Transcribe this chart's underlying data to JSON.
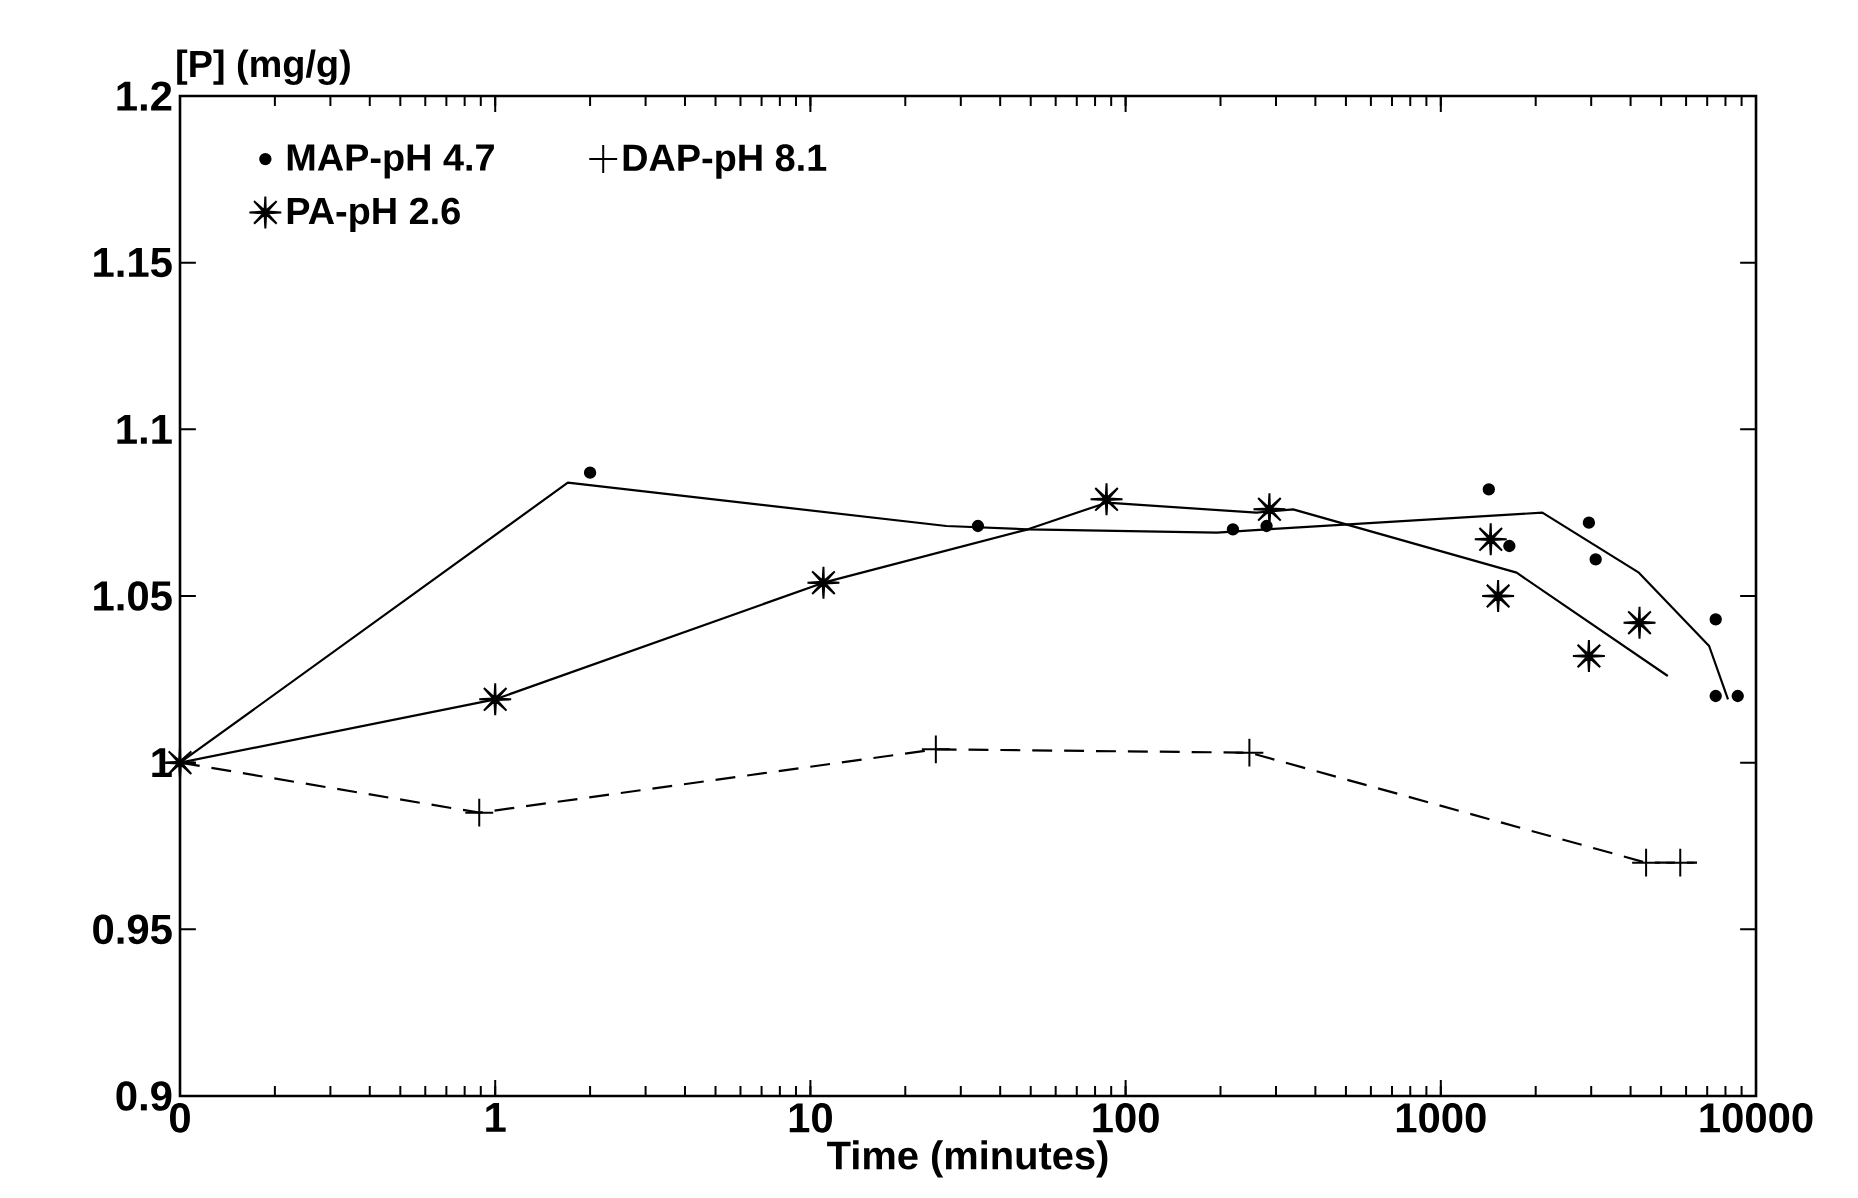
{
  "chart_data": {
    "type": "scatter",
    "xlabel": "Time (minutes)",
    "ylabel": "[P] (mg/g)",
    "log": "x",
    "xlim": [
      0.1,
      10000
    ],
    "ylim": [
      0.9,
      1.2
    ],
    "xticks": [
      {
        "value": 0.1,
        "label": "0"
      },
      1,
      10,
      100,
      1000,
      10000
    ],
    "yticks": [
      0.9,
      0.95,
      1,
      1.05,
      1.1,
      1.15,
      1.2
    ],
    "grid": false,
    "legend": "top left",
    "series": [
      {
        "name": "MAP-pH 4.7",
        "color": "#000000",
        "marker": "circle",
        "x": [
          2,
          34,
          219,
          280,
          1420,
          1650,
          2950,
          3100,
          7450,
          7450,
          8750
        ],
        "values": [
          1.087,
          1.071,
          1.07,
          1.071,
          1.082,
          1.065,
          1.072,
          1.061,
          1.043,
          1.02,
          1.02
        ]
      },
      {
        "name": "DAP-pH 8.1",
        "color": "#000000",
        "marker": "cross",
        "x": [
          0.1,
          0.89,
          25,
          247,
          4480,
          5750
        ],
        "values": [
          1.0,
          0.985,
          1.004,
          1.003,
          0.97,
          0.97
        ]
      },
      {
        "name": "PA-pH 2.6",
        "color": "#000000",
        "marker": "star",
        "x": [
          0.1,
          1,
          11,
          87,
          286,
          1440,
          1520,
          2950,
          4270
        ],
        "values": [
          1.0,
          1.019,
          1.054,
          1.079,
          1.076,
          1.067,
          1.05,
          1.032,
          1.042
        ]
      },
      {
        "type": "line",
        "color": "#000000",
        "marker": "none",
        "line_style": "solid",
        "x": [
          0.1,
          1.7,
          27,
          49,
          195,
          280,
          2100,
          4250,
          7100,
          8150
        ],
        "values": [
          1.0,
          1.084,
          1.071,
          1.07,
          1.069,
          1.07,
          1.075,
          1.057,
          1.035,
          1.019
        ]
      },
      {
        "type": "line",
        "color": "#000000",
        "marker": "none",
        "line_style": "solid",
        "x": [
          0.1,
          1,
          11,
          49,
          87,
          260,
          340,
          1740,
          5250
        ],
        "values": [
          1.0,
          1.019,
          1.054,
          1.07,
          1.078,
          1.075,
          1.076,
          1.057,
          1.026
        ]
      },
      {
        "type": "line",
        "color": "#000000",
        "marker": "none",
        "line_style": "dashed",
        "x": [
          0.1,
          0.89,
          25,
          247,
          4480,
          6500
        ],
        "values": [
          1.0,
          0.985,
          1.004,
          1.003,
          0.97,
          0.97
        ]
      }
    ]
  }
}
